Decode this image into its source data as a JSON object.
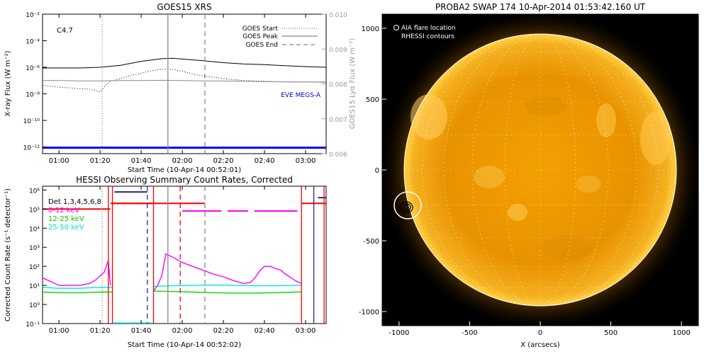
{
  "chart_data": [
    {
      "type": "line",
      "title": "GOES15 XRS",
      "xlabel": "Start Time (10-Apr-14 00:52:01)",
      "ylabel": "X-ray Flux (W m⁻²)",
      "ylabel_right": "GOES15 Lyα Flux (W m⁻²)",
      "flare_class": "C4.7",
      "x_ticks": [
        "01:00",
        "01:20",
        "01:40",
        "02:00",
        "02:20",
        "02:40",
        "03:00"
      ],
      "x_tick_minutes": [
        60,
        80,
        100,
        120,
        140,
        160,
        180
      ],
      "xlim_minutes": [
        52,
        190
      ],
      "y_ticks": [
        "10⁻²",
        "10⁻⁴",
        "10⁻⁶",
        "10⁻⁸",
        "10⁻¹⁰",
        "10⁻¹²"
      ],
      "y_tick_exps": [
        -2,
        -4,
        -6,
        -8,
        -10,
        -12
      ],
      "ylim_log": [
        -12.5,
        -2
      ],
      "y2_ticks": [
        "0.010",
        "0.009",
        "0.008",
        "0.007",
        "0.006"
      ],
      "y2_tick_values": [
        0.01,
        0.009,
        0.008,
        0.007,
        0.006
      ],
      "y2lim": [
        0.006,
        0.01
      ],
      "vlines": [
        {
          "name": "GOES Start",
          "minute": 81,
          "style": "dotted"
        },
        {
          "name": "GOES Peak",
          "minute": 113,
          "style": "solid"
        },
        {
          "name": "GOES End",
          "minute": 131,
          "style": "dashed"
        }
      ],
      "legend": [
        "GOES Start",
        "GOES Peak",
        "GOES End"
      ],
      "annotation": "EVE MEGS-A",
      "series": [
        {
          "color": "#000000",
          "style": "solid",
          "x": [
            52,
            60,
            70,
            80,
            90,
            100,
            105,
            110,
            115,
            120,
            130,
            140,
            150,
            160,
            170,
            180,
            190
          ],
          "y_exp": [
            -6.05,
            -6.05,
            -6.05,
            -6.0,
            -5.85,
            -5.55,
            -5.45,
            -5.35,
            -5.32,
            -5.38,
            -5.5,
            -5.65,
            -5.75,
            -5.8,
            -5.88,
            -5.95,
            -6.0
          ]
        },
        {
          "color": "#000000",
          "style": "dotted",
          "x": [
            52,
            60,
            65,
            70,
            75,
            80,
            83,
            85,
            90,
            95,
            100,
            105,
            110,
            115,
            120,
            125,
            130,
            140,
            150,
            160,
            170,
            180,
            190
          ],
          "y_exp": [
            -7.35,
            -7.5,
            -7.55,
            -7.6,
            -7.65,
            -7.85,
            -7.3,
            -7.05,
            -6.85,
            -6.6,
            -6.45,
            -6.25,
            -6.15,
            -6.15,
            -6.3,
            -6.5,
            -6.65,
            -6.85,
            -7.0,
            -7.05,
            -7.1,
            -7.1,
            -7.15
          ]
        },
        {
          "color": "#8a8a8a",
          "style": "solid",
          "x": [
            52,
            60,
            70,
            80,
            90,
            100,
            110,
            120,
            130,
            140,
            150,
            160,
            170,
            180,
            190
          ],
          "y_exp": [
            -7.0,
            -7.0,
            -7.02,
            -7.02,
            -7.0,
            -7.0,
            -6.98,
            -7.0,
            -7.02,
            -7.03,
            -7.05,
            -7.08,
            -7.1,
            -7.1,
            -7.1
          ]
        },
        {
          "color": "#0000ff",
          "style": "solid",
          "x": [
            52,
            190
          ],
          "y_exp": [
            -12.05,
            -12.05
          ]
        }
      ]
    },
    {
      "type": "line",
      "title": "HESSI Observing Summary Count Rates, Corrected",
      "xlabel": "Start Time (10-Apr-14 00:52:02)",
      "ylabel": "Corrected Count Rate (s⁻¹ detector⁻¹)",
      "x_ticks": [
        "01:00",
        "01:20",
        "01:40",
        "02:00",
        "02:20",
        "02:40",
        "03:00"
      ],
      "x_tick_minutes": [
        60,
        80,
        100,
        120,
        140,
        160,
        180
      ],
      "xlim_minutes": [
        52,
        190
      ],
      "y_ticks": [
        "10⁶",
        "10⁵",
        "10⁴",
        "10³",
        "10²",
        "10¹",
        "10⁰",
        "10⁻¹"
      ],
      "y_tick_exps": [
        6,
        5,
        4,
        3,
        2,
        1,
        0,
        -1
      ],
      "ylim_log": [
        -1,
        6.2
      ],
      "legend": [
        {
          "label": "Det 1,3,4,5,6,8",
          "color": "#000000"
        },
        {
          "label": "6-12 keV",
          "color": "#ff00ff"
        },
        {
          "label": "12-25 keV",
          "color": "#00dd00"
        },
        {
          "label": "25-50 keV",
          "color": "#00e5e5"
        }
      ],
      "series": [
        {
          "name": "6-12 keV",
          "color": "#ff00ff",
          "x": [
            52,
            56,
            60,
            70,
            75,
            78,
            80,
            82,
            84,
            85,
            86
          ],
          "y_exp": [
            1.4,
            1.2,
            1.0,
            1.0,
            1.1,
            1.3,
            1.5,
            1.7,
            2.3,
            1.0,
            null
          ]
        },
        {
          "name": "6-12 keV",
          "color": "#ff00ff",
          "x": [
            106,
            108,
            110,
            112,
            115,
            120,
            125,
            130,
            135,
            140,
            145,
            150,
            153,
            155,
            158,
            160,
            163,
            165,
            168,
            170,
            173,
            175,
            178
          ],
          "y_exp": [
            0.7,
            1.0,
            1.5,
            2.65,
            2.5,
            2.2,
            2.0,
            1.8,
            1.6,
            1.45,
            1.25,
            1.1,
            1.15,
            1.35,
            1.8,
            2.0,
            2.0,
            1.9,
            1.8,
            1.6,
            1.4,
            1.25,
            1.1
          ]
        },
        {
          "name": "12-25 keV",
          "color": "#00dd00",
          "x": [
            52,
            60,
            70,
            80,
            86
          ],
          "y_exp": [
            0.65,
            0.62,
            0.62,
            0.65,
            0.65
          ]
        },
        {
          "name": "12-25 keV",
          "color": "#00dd00",
          "x": [
            106,
            115,
            125,
            135,
            145,
            155,
            165,
            175,
            178
          ],
          "y_exp": [
            0.7,
            0.68,
            0.65,
            0.62,
            0.6,
            0.6,
            0.62,
            0.65,
            0.65
          ]
        },
        {
          "name": "25-50 keV",
          "color": "#00e5e5",
          "x": [
            52,
            60,
            70,
            80,
            86
          ],
          "y_exp": [
            0.9,
            0.85,
            0.85,
            0.9,
            0.9
          ]
        },
        {
          "name": "25-50 keV",
          "color": "#00e5e5",
          "x": [
            106,
            115,
            125,
            135,
            145,
            155,
            165,
            175,
            178
          ],
          "y_exp": [
            0.95,
            0.98,
            1.0,
            1.02,
            1.0,
            0.98,
            0.98,
            1.0,
            1.0
          ]
        },
        {
          "name": "25-50 keV",
          "color": "#00e5e5",
          "x": [
            86,
            106
          ],
          "y_exp": [
            -0.97,
            -0.97
          ]
        },
        {
          "name": "attenuator",
          "color": "#ff0000",
          "x": [
            85,
            86,
            105,
            106
          ],
          "y_exp": [
            5.3,
            5.3,
            5.3,
            5.3
          ]
        },
        {
          "name": "attenuator",
          "color": "#ff0000",
          "x": [
            52,
            85
          ],
          "y_exp": [
            5.0,
            5.0
          ]
        },
        {
          "name": "attenuator",
          "color": "#ff0000",
          "x": [
            86,
            106
          ],
          "y_exp": [
            5.3,
            5.3
          ]
        },
        {
          "name": "attenuator",
          "color": "#ff0000",
          "x": [
            106,
            131
          ],
          "y_exp": [
            5.3,
            5.3
          ]
        },
        {
          "name": "attenuator",
          "color": "#ff0000",
          "x": [
            178,
            190
          ],
          "y_exp": [
            5.3,
            5.3
          ]
        },
        {
          "name": "decimation",
          "color": "#1c2d8f",
          "x": [
            87,
            103
          ],
          "y_exp": [
            5.9,
            5.9
          ]
        },
        {
          "name": "decimation",
          "color": "#1c2d8f",
          "x": [
            186,
            190
          ],
          "y_exp": [
            5.6,
            5.6
          ]
        },
        {
          "name": "flag",
          "color": "#ff00ff",
          "x": [
            120,
            139
          ],
          "y_exp": [
            4.9,
            4.9
          ]
        },
        {
          "name": "flag",
          "color": "#ff00ff",
          "x": [
            142,
            152
          ],
          "y_exp": [
            4.9,
            4.9
          ]
        },
        {
          "name": "flag",
          "color": "#ff00ff",
          "x": [
            155,
            176
          ],
          "y_exp": [
            4.9,
            4.9
          ]
        }
      ],
      "vlines": [
        {
          "minute": 81,
          "color": "#888888",
          "style": "dotted"
        },
        {
          "minute": 84,
          "color": "#ff0000",
          "style": "solid"
        },
        {
          "minute": 86,
          "color": "#ff0000",
          "style": "solid"
        },
        {
          "minute": 103,
          "color": "#1c2d8f",
          "style": "dashed"
        },
        {
          "minute": 106,
          "color": "#ff0000",
          "style": "solid"
        },
        {
          "minute": 113,
          "color": "#888888",
          "style": "solid"
        },
        {
          "minute": 119,
          "color": "#ff0000",
          "style": "dashed"
        },
        {
          "minute": 131,
          "color": "#888888",
          "style": "dashed"
        },
        {
          "minute": 178,
          "color": "#ff0000",
          "style": "solid"
        },
        {
          "minute": 184,
          "color": "#1c2d8f",
          "style": "solid"
        },
        {
          "minute": 189,
          "color": "#ff0000",
          "style": "solid"
        }
      ]
    },
    {
      "type": "image",
      "title": "PROBA2 SWAP 174 10-Apr-2014 01:53:42.160 UT",
      "xlabel": "X (arcsecs)",
      "ylabel": "",
      "x_ticks": [
        "-1000",
        "-500",
        "0",
        "500",
        "1000"
      ],
      "x_tick_values": [
        -1000,
        -500,
        0,
        500,
        1000
      ],
      "y_ticks": [
        "1000",
        "500",
        "0",
        "-500",
        "-1000"
      ],
      "y_tick_values": [
        1000,
        500,
        0,
        -500,
        -1000
      ],
      "xlim": [
        -1120,
        1120
      ],
      "ylim": [
        -1100,
        1100
      ],
      "legend": [
        {
          "label": "AIA flare location",
          "marker": "circle-open"
        },
        {
          "label": "RHESSI contours",
          "marker": "circle"
        }
      ],
      "sun_radius_arcsec": 960,
      "flare_location_arcsec": [
        -930,
        -270
      ],
      "colors": {
        "sun_core": "#f7a800",
        "sun_edge": "#c06a00",
        "background": "#000000"
      }
    }
  ]
}
